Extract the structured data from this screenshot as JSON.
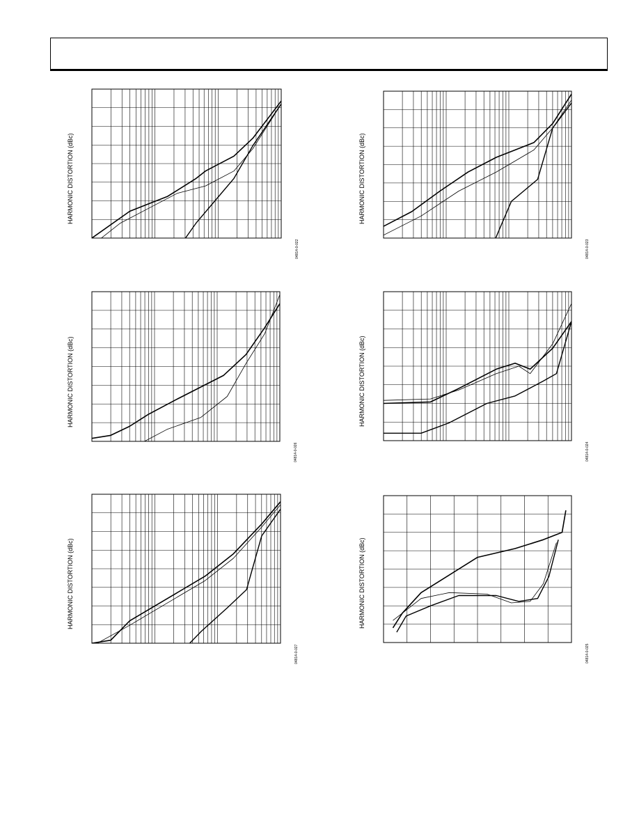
{
  "chart_data": [
    {
      "type": "line",
      "ylabel": "HARMONIC DISTORTION (dBc)",
      "figure_id": "04814-0-022",
      "xscale": "log",
      "grid": true,
      "series": [
        {
          "points": [
            [
              0.0,
              1.0
            ],
            [
              0.2,
              0.82
            ],
            [
              0.3,
              0.77
            ],
            [
              0.4,
              0.72
            ],
            [
              0.55,
              0.6
            ],
            [
              0.6,
              0.55
            ],
            [
              0.75,
              0.45
            ],
            [
              0.85,
              0.33
            ],
            [
              1.0,
              0.08
            ]
          ]
        },
        {
          "points": [
            [
              0.0,
              1.05
            ],
            [
              0.15,
              0.9
            ],
            [
              0.3,
              0.8
            ],
            [
              0.45,
              0.7
            ],
            [
              0.6,
              0.65
            ],
            [
              0.75,
              0.55
            ],
            [
              0.85,
              0.4
            ],
            [
              1.0,
              0.1
            ]
          ]
        },
        {
          "points": [
            [
              0.45,
              1.08
            ],
            [
              0.55,
              0.9
            ],
            [
              0.65,
              0.75
            ],
            [
              0.75,
              0.6
            ],
            [
              0.85,
              0.38
            ],
            [
              1.0,
              0.1
            ]
          ]
        }
      ]
    },
    {
      "type": "line",
      "ylabel": "HARMONIC DISTORTION (dBc)",
      "figure_id": "04814-0-023",
      "xscale": "log",
      "grid": true,
      "series": [
        {
          "points": [
            [
              0.0,
              0.92
            ],
            [
              0.15,
              0.82
            ],
            [
              0.3,
              0.68
            ],
            [
              0.45,
              0.55
            ],
            [
              0.6,
              0.45
            ],
            [
              0.8,
              0.35
            ],
            [
              0.9,
              0.22
            ],
            [
              1.0,
              0.02
            ]
          ]
        },
        {
          "points": [
            [
              0.0,
              0.98
            ],
            [
              0.2,
              0.85
            ],
            [
              0.4,
              0.68
            ],
            [
              0.6,
              0.55
            ],
            [
              0.8,
              0.4
            ],
            [
              0.9,
              0.25
            ],
            [
              1.0,
              0.06
            ]
          ]
        },
        {
          "points": [
            [
              0.58,
              1.05
            ],
            [
              0.68,
              0.75
            ],
            [
              0.82,
              0.6
            ],
            [
              0.9,
              0.25
            ],
            [
              1.0,
              0.08
            ]
          ]
        }
      ]
    },
    {
      "type": "line",
      "ylabel": "HARMONIC DISTORTION (dBc)",
      "figure_id": "04814-0-026",
      "xscale": "log",
      "grid": true,
      "series": [
        {
          "points": [
            [
              0.0,
              0.98
            ],
            [
              0.1,
              0.96
            ],
            [
              0.2,
              0.9
            ],
            [
              0.3,
              0.82
            ],
            [
              0.45,
              0.72
            ],
            [
              0.7,
              0.56
            ],
            [
              0.82,
              0.42
            ],
            [
              0.92,
              0.24
            ],
            [
              1.0,
              0.08
            ]
          ]
        },
        {
          "points": [
            [
              0.28,
              1.0
            ],
            [
              0.4,
              0.92
            ],
            [
              0.58,
              0.84
            ],
            [
              0.72,
              0.7
            ],
            [
              0.82,
              0.48
            ],
            [
              0.92,
              0.28
            ],
            [
              1.0,
              0.02
            ]
          ]
        }
      ]
    },
    {
      "type": "line",
      "ylabel": "HARMONIC DISTORTION (dBc)",
      "figure_id": "04814-0-024",
      "xscale": "log",
      "grid": true,
      "series": [
        {
          "points": [
            [
              0.0,
              0.75
            ],
            [
              0.25,
              0.74
            ],
            [
              0.4,
              0.65
            ],
            [
              0.6,
              0.52
            ],
            [
              0.7,
              0.48
            ],
            [
              0.78,
              0.52
            ],
            [
              0.9,
              0.38
            ],
            [
              1.0,
              0.2
            ]
          ]
        },
        {
          "points": [
            [
              0.0,
              0.73
            ],
            [
              0.25,
              0.72
            ],
            [
              0.4,
              0.66
            ],
            [
              0.6,
              0.55
            ],
            [
              0.72,
              0.5
            ],
            [
              0.78,
              0.55
            ],
            [
              0.9,
              0.35
            ],
            [
              1.0,
              0.08
            ]
          ]
        },
        {
          "points": [
            [
              0.0,
              0.95
            ],
            [
              0.2,
              0.95
            ],
            [
              0.35,
              0.88
            ],
            [
              0.55,
              0.75
            ],
            [
              0.7,
              0.7
            ],
            [
              0.85,
              0.6
            ],
            [
              0.92,
              0.55
            ],
            [
              1.0,
              0.2
            ]
          ]
        }
      ]
    },
    {
      "type": "line",
      "ylabel": "HARMONIC DISTORTION (dBc)",
      "figure_id": "04814-0-027",
      "xscale": "log",
      "grid": true,
      "series": [
        {
          "points": [
            [
              0.0,
              1.0
            ],
            [
              0.1,
              0.98
            ],
            [
              0.2,
              0.85
            ],
            [
              0.4,
              0.7
            ],
            [
              0.6,
              0.55
            ],
            [
              0.75,
              0.4
            ],
            [
              0.9,
              0.2
            ],
            [
              1.0,
              0.05
            ]
          ]
        },
        {
          "points": [
            [
              0.0,
              1.02
            ],
            [
              0.2,
              0.88
            ],
            [
              0.4,
              0.73
            ],
            [
              0.6,
              0.58
            ],
            [
              0.75,
              0.43
            ],
            [
              0.9,
              0.22
            ],
            [
              1.0,
              0.07
            ]
          ]
        },
        {
          "points": [
            [
              0.48,
              1.05
            ],
            [
              0.58,
              0.92
            ],
            [
              0.72,
              0.76
            ],
            [
              0.82,
              0.64
            ],
            [
              0.9,
              0.28
            ],
            [
              1.0,
              0.1
            ]
          ]
        }
      ]
    },
    {
      "type": "line",
      "ylabel": "HARMONIC DISTORTION (dBc)",
      "figure_id": "04814-0-025",
      "xscale": "linear",
      "grid": true,
      "series": [
        {
          "points": [
            [
              0.05,
              0.9
            ],
            [
              0.1,
              0.8
            ],
            [
              0.2,
              0.66
            ],
            [
              0.3,
              0.58
            ],
            [
              0.5,
              0.42
            ],
            [
              0.7,
              0.36
            ],
            [
              0.85,
              0.3
            ],
            [
              0.95,
              0.25
            ],
            [
              0.97,
              0.1
            ]
          ]
        },
        {
          "points": [
            [
              0.05,
              0.85
            ],
            [
              0.1,
              0.8
            ],
            [
              0.2,
              0.7
            ],
            [
              0.35,
              0.66
            ],
            [
              0.55,
              0.67
            ],
            [
              0.68,
              0.73
            ],
            [
              0.78,
              0.72
            ],
            [
              0.85,
              0.6
            ],
            [
              0.92,
              0.32
            ]
          ]
        },
        {
          "points": [
            [
              0.07,
              0.93
            ],
            [
              0.12,
              0.82
            ],
            [
              0.25,
              0.75
            ],
            [
              0.4,
              0.68
            ],
            [
              0.6,
              0.68
            ],
            [
              0.72,
              0.72
            ],
            [
              0.82,
              0.7
            ],
            [
              0.88,
              0.55
            ],
            [
              0.93,
              0.3
            ]
          ]
        }
      ]
    }
  ]
}
